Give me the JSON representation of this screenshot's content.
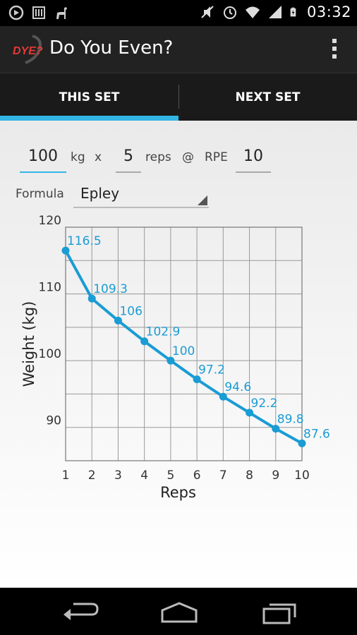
{
  "status_bar": {
    "time": "03:32",
    "icons": [
      "sync-icon",
      "barcode-icon",
      "llama-icon",
      "mute-icon",
      "alarm-icon",
      "wifi-icon",
      "signal-icon",
      "battery-charging-icon"
    ]
  },
  "action_bar": {
    "logo_text": "DYE?",
    "title": "Do You Even?"
  },
  "tabs": [
    {
      "label": "THIS SET",
      "selected": true
    },
    {
      "label": "NEXT SET",
      "selected": false
    }
  ],
  "inputs": {
    "weight": "100",
    "weight_unit": "kg",
    "times": "x",
    "reps": "5",
    "reps_label": "reps",
    "at": "@",
    "rpe_label": "RPE",
    "rpe": "10"
  },
  "formula": {
    "label": "Formula",
    "value": "Epley"
  },
  "colors": {
    "accent": "#33b5e5",
    "series": "#1a9cd4"
  },
  "chart_data": {
    "type": "line",
    "xlabel": "Reps",
    "ylabel": "Weight (kg)",
    "x": [
      1,
      2,
      3,
      4,
      5,
      6,
      7,
      8,
      9,
      10
    ],
    "x_ticks": [
      "1",
      "2",
      "3",
      "4",
      "5",
      "6",
      "7",
      "8",
      "9",
      "10"
    ],
    "y_ticks": [
      "90",
      "100",
      "110",
      "120"
    ],
    "y_tick_values": [
      90,
      100,
      110,
      120
    ],
    "xlim": [
      1,
      10
    ],
    "ylim": [
      85,
      120
    ],
    "grid": true,
    "series": [
      {
        "values": [
          116.5,
          109.3,
          106,
          102.9,
          100,
          97.2,
          94.6,
          92.2,
          89.8,
          87.6
        ],
        "labels": [
          "116.5",
          "109.3",
          "106",
          "102.9",
          "100",
          "97.2",
          "94.6",
          "92.2",
          "89.8",
          "87.6"
        ]
      }
    ]
  }
}
